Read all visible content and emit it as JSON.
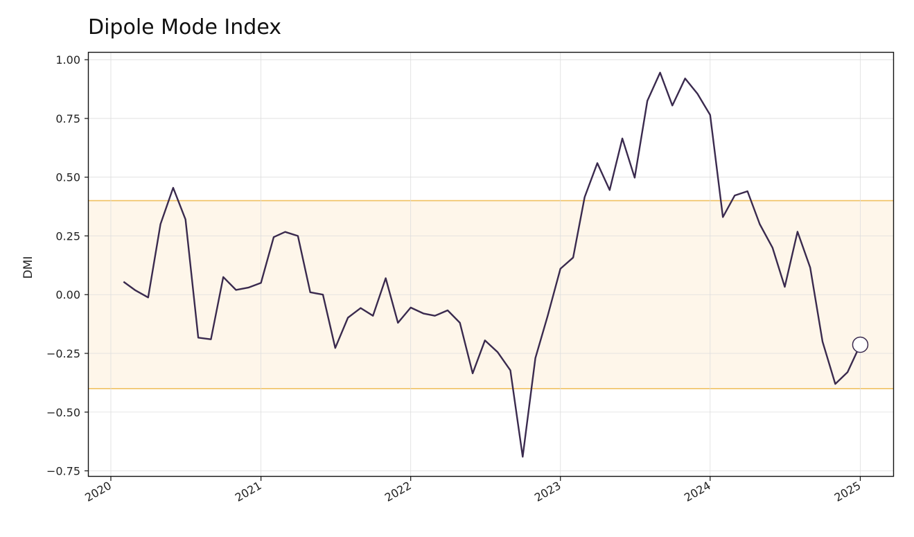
{
  "chart_data": {
    "type": "line",
    "title": "Dipole Mode Index",
    "xlabel": "",
    "ylabel": "DMI",
    "x_tick_labels": [
      "2020",
      "2021",
      "2022",
      "2023",
      "2024",
      "2025"
    ],
    "y_tick_labels": [
      "1.00",
      "0.75",
      "0.50",
      "0.25",
      "0.00",
      "−0.25",
      "−0.50",
      "−0.75"
    ],
    "y_ticks": [
      1.0,
      0.75,
      0.5,
      0.25,
      0.0,
      -0.25,
      -0.5,
      -0.75
    ],
    "xlim": [
      "2019-11-08",
      "2025-03-24"
    ],
    "ylim": [
      -0.775,
      1.03
    ],
    "grid": true,
    "threshold_band": {
      "low": -0.4,
      "high": 0.4,
      "fill_color": "#fef6ea",
      "line_color": "#f0c060"
    },
    "series": [
      {
        "color": "#3a2a4e",
        "points": [
          [
            "2020-02-01",
            0.055
          ],
          [
            "2020-03-01",
            0.018
          ],
          [
            "2020-04-01",
            -0.012
          ],
          [
            "2020-05-01",
            0.3
          ],
          [
            "2020-06-01",
            0.455
          ],
          [
            "2020-07-01",
            0.32
          ],
          [
            "2020-08-01",
            -0.183
          ],
          [
            "2020-09-01",
            -0.19
          ],
          [
            "2020-10-01",
            0.075
          ],
          [
            "2020-11-01",
            0.02
          ],
          [
            "2020-12-01",
            0.03
          ],
          [
            "2021-01-01",
            0.05
          ],
          [
            "2021-02-01",
            0.245
          ],
          [
            "2021-03-01",
            0.267
          ],
          [
            "2021-04-01",
            0.25
          ],
          [
            "2021-05-01",
            0.01
          ],
          [
            "2021-06-01",
            0.0
          ],
          [
            "2021-07-01",
            -0.227
          ],
          [
            "2021-08-01",
            -0.098
          ],
          [
            "2021-09-01",
            -0.057
          ],
          [
            "2021-10-01",
            -0.09
          ],
          [
            "2021-11-01",
            0.07
          ],
          [
            "2021-12-01",
            -0.12
          ],
          [
            "2022-01-01",
            -0.055
          ],
          [
            "2022-02-01",
            -0.08
          ],
          [
            "2022-03-01",
            -0.09
          ],
          [
            "2022-04-01",
            -0.067
          ],
          [
            "2022-05-01",
            -0.12
          ],
          [
            "2022-06-01",
            -0.335
          ],
          [
            "2022-07-01",
            -0.195
          ],
          [
            "2022-08-01",
            -0.245
          ],
          [
            "2022-09-01",
            -0.322
          ],
          [
            "2022-10-01",
            -0.69
          ],
          [
            "2022-11-01",
            -0.27
          ],
          [
            "2022-12-01",
            -0.09
          ],
          [
            "2023-01-01",
            0.11
          ],
          [
            "2023-02-01",
            0.158
          ],
          [
            "2023-03-01",
            0.415
          ],
          [
            "2023-04-01",
            0.56
          ],
          [
            "2023-05-01",
            0.445
          ],
          [
            "2023-06-01",
            0.665
          ],
          [
            "2023-07-01",
            0.498
          ],
          [
            "2023-08-01",
            0.825
          ],
          [
            "2023-09-01",
            0.945
          ],
          [
            "2023-10-01",
            0.805
          ],
          [
            "2023-11-01",
            0.92
          ],
          [
            "2023-12-01",
            0.855
          ],
          [
            "2024-01-01",
            0.765
          ],
          [
            "2024-02-01",
            0.33
          ],
          [
            "2024-03-01",
            0.422
          ],
          [
            "2024-04-01",
            0.44
          ],
          [
            "2024-05-01",
            0.3
          ],
          [
            "2024-06-01",
            0.2
          ],
          [
            "2024-07-01",
            0.033
          ],
          [
            "2024-08-01",
            0.268
          ],
          [
            "2024-09-01",
            0.115
          ],
          [
            "2024-10-01",
            -0.2
          ],
          [
            "2024-11-01",
            -0.38
          ],
          [
            "2024-12-01",
            -0.33
          ],
          [
            "2025-01-01",
            -0.213
          ]
        ]
      }
    ],
    "highlight_last_point": true
  }
}
